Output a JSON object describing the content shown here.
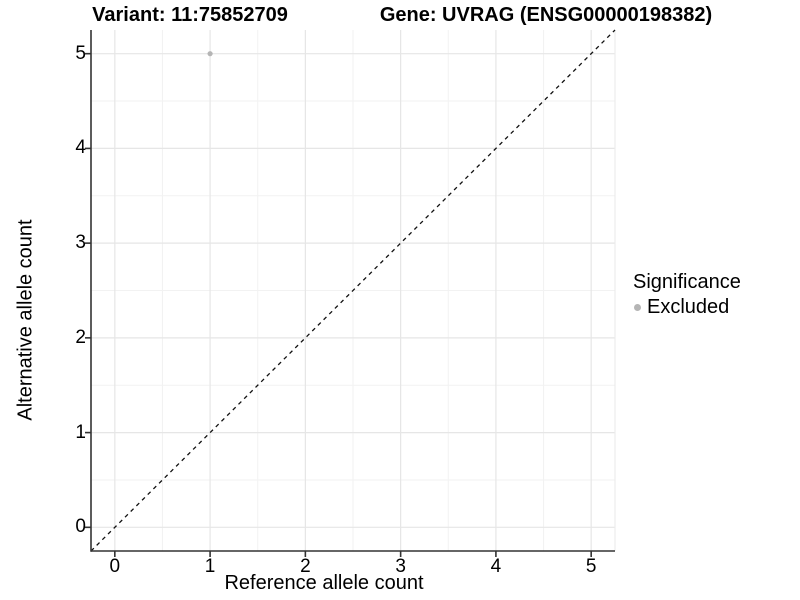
{
  "titles": {
    "left": "Variant: 11:75852709",
    "right": "Gene: UVRAG (ENSG00000198382)"
  },
  "axes": {
    "x": {
      "label": "Reference allele count",
      "tick_labels": [
        "0",
        "1",
        "2",
        "3",
        "4",
        "5"
      ]
    },
    "y": {
      "label": "Alternative allele count",
      "tick_labels": [
        "0",
        "1",
        "2",
        "3",
        "4",
        "5"
      ]
    }
  },
  "legend": {
    "title": "Significance",
    "items": [
      {
        "label": "Excluded",
        "color": "#b5b5b5"
      }
    ]
  },
  "colors": {
    "background": "#ffffff",
    "major_grid": "#e6e6e6",
    "minor_grid": "#f2f2f2",
    "panel_edge": "#ececec",
    "axis_line": "#333333",
    "reference_line": "#111111",
    "point": "#b5b5b5",
    "text": "#000000"
  },
  "chart_data": {
    "type": "scatter",
    "title": "Variant: 11:75852709 / Gene: UVRAG (ENSG00000198382)",
    "xlabel": "Reference allele count",
    "ylabel": "Alternative allele count",
    "xlim": [
      -0.25,
      5.25
    ],
    "ylim": [
      -0.25,
      5.25
    ],
    "x_ticks": [
      0,
      1,
      2,
      3,
      4,
      5
    ],
    "y_ticks": [
      0,
      1,
      2,
      3,
      4,
      5
    ],
    "x_minor_ticks": [
      0.5,
      1.5,
      2.5,
      3.5,
      4.5
    ],
    "y_minor_ticks": [
      0.5,
      1.5,
      2.5,
      3.5,
      4.5
    ],
    "grid": "major and minor gridlines, light gray on white",
    "legend_position": "right",
    "series": [
      {
        "name": "Excluded",
        "color": "#b5b5b5",
        "marker": "circle",
        "points": [
          {
            "x": 1,
            "y": 5
          }
        ]
      }
    ],
    "annotations": [
      {
        "type": "identity-line",
        "equation": "y = x",
        "style": "dashed",
        "color": "#111111"
      }
    ]
  }
}
